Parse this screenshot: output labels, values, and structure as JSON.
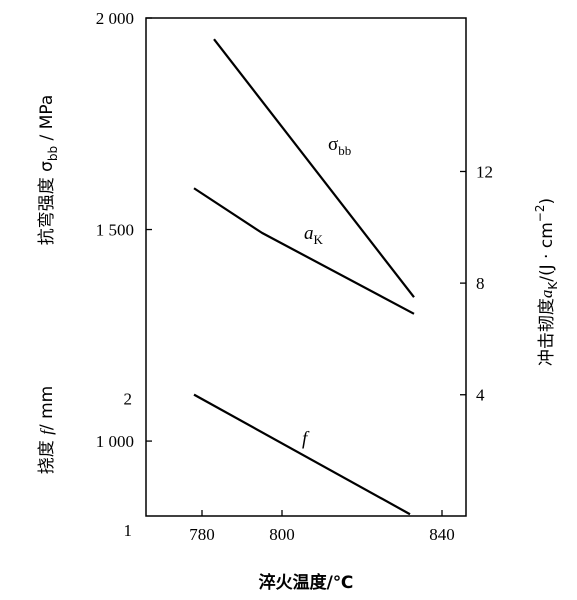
{
  "chart_data": {
    "type": "line",
    "xlabel": "淬火温度/℃",
    "xlim": [
      766,
      846
    ],
    "x_ticks": [
      780,
      800,
      840
    ],
    "y_left_upper": {
      "label_prefix": "抗弯强度 σ",
      "label_sub": "bb",
      "label_suffix": " / MPa",
      "ylim": [
        830,
        2000
      ],
      "ticks": [
        2000,
        1500,
        1000
      ],
      "tick_labels": [
        "2 000",
        "1 500",
        "1 000"
      ]
    },
    "y_left_lower": {
      "label_prefix": "挠度 ",
      "label_italic": "f",
      "label_suffix": "/ mm",
      "ylim": [
        1,
        2.4
      ],
      "ticks": [
        2,
        1
      ],
      "tick_labels": [
        "2",
        "1"
      ]
    },
    "y_right": {
      "label_prefix": "冲击韧度",
      "label_italic": "a",
      "label_sub": "K",
      "label_suffix": "/(J · cm",
      "label_sup": "−2",
      "label_end": ")",
      "ylim": [
        0.3,
        17.5
      ],
      "ticks": [
        12,
        8,
        4
      ],
      "tick_labels": [
        "12",
        "8",
        "4"
      ]
    },
    "series": [
      {
        "name": "σ",
        "name_sub": "bb",
        "name_style": "greek",
        "axis": "y_left_upper",
        "x": [
          783,
          833
        ],
        "y": [
          1950,
          1340
        ]
      },
      {
        "name": "a",
        "name_sub": "K",
        "name_style": "italic",
        "axis": "y_right",
        "x": [
          778,
          795,
          833
        ],
        "y": [
          11.4,
          9.8,
          6.9
        ]
      },
      {
        "name": "f",
        "name_style": "italic",
        "axis": "y_left_lower",
        "x": [
          778,
          832
        ],
        "y": [
          2.03,
          1.12
        ]
      }
    ]
  }
}
